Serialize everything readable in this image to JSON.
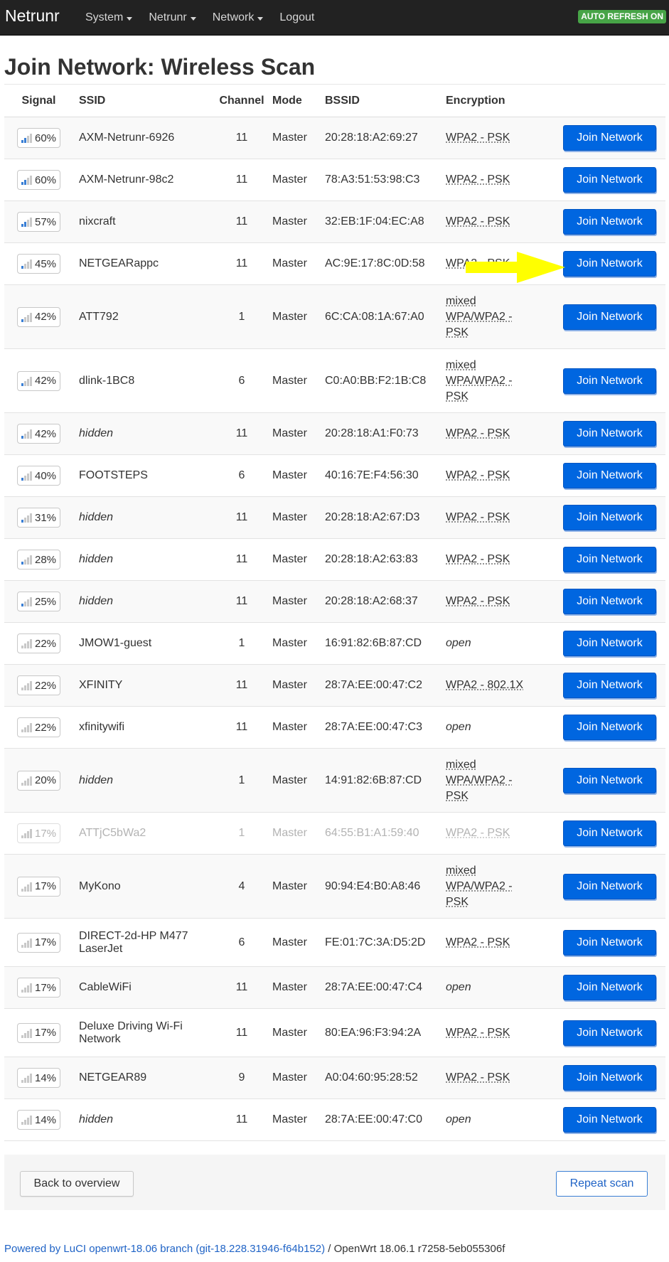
{
  "navbar": {
    "brand": "Netrunr",
    "menu": [
      {
        "label": "System",
        "dropdown": true
      },
      {
        "label": "Netrunr",
        "dropdown": true
      },
      {
        "label": "Network",
        "dropdown": true
      },
      {
        "label": "Logout",
        "dropdown": false
      }
    ],
    "auto_refresh_badge": "AUTO REFRESH ON"
  },
  "page_title": "Join Network: Wireless Scan",
  "table": {
    "headers": [
      "Signal",
      "SSID",
      "Channel",
      "Mode",
      "BSSID",
      "Encryption"
    ],
    "join_label": "Join Network",
    "rows": [
      {
        "signal": "60%",
        "bars": 2,
        "ssid": "AXM-Netrunr-6926",
        "hidden": false,
        "channel": "11",
        "mode": "Master",
        "bssid": "20:28:18:A2:69:27",
        "encryption": "WPA2 - PSK",
        "enc_type": "abbr",
        "dim": false
      },
      {
        "signal": "60%",
        "bars": 2,
        "ssid": "AXM-Netrunr-98c2",
        "hidden": false,
        "channel": "11",
        "mode": "Master",
        "bssid": "78:A3:51:53:98:C3",
        "encryption": "WPA2 - PSK",
        "enc_type": "abbr",
        "dim": false
      },
      {
        "signal": "57%",
        "bars": 2,
        "ssid": "nixcraft",
        "hidden": false,
        "channel": "11",
        "mode": "Master",
        "bssid": "32:EB:1F:04:EC:A8",
        "encryption": "WPA2 - PSK",
        "enc_type": "abbr",
        "dim": false
      },
      {
        "signal": "45%",
        "bars": 1,
        "ssid": "NETGEARappc",
        "hidden": false,
        "channel": "11",
        "mode": "Master",
        "bssid": "AC:9E:17:8C:0D:58",
        "encryption": "WPA2 - PSK",
        "enc_type": "abbr",
        "dim": false
      },
      {
        "signal": "42%",
        "bars": 1,
        "ssid": "ATT792",
        "hidden": false,
        "channel": "1",
        "mode": "Master",
        "bssid": "6C:CA:08:1A:67:A0",
        "encryption": "mixed WPA/WPA2 - PSK",
        "enc_type": "mixed",
        "dim": false
      },
      {
        "signal": "42%",
        "bars": 1,
        "ssid": "dlink-1BC8",
        "hidden": false,
        "channel": "6",
        "mode": "Master",
        "bssid": "C0:A0:BB:F2:1B:C8",
        "encryption": "mixed WPA/WPA2 - PSK",
        "enc_type": "mixed",
        "dim": false
      },
      {
        "signal": "42%",
        "bars": 1,
        "ssid": "hidden",
        "hidden": true,
        "channel": "11",
        "mode": "Master",
        "bssid": "20:28:18:A1:F0:73",
        "encryption": "WPA2 - PSK",
        "enc_type": "abbr",
        "dim": false
      },
      {
        "signal": "40%",
        "bars": 1,
        "ssid": "FOOTSTEPS",
        "hidden": false,
        "channel": "6",
        "mode": "Master",
        "bssid": "40:16:7E:F4:56:30",
        "encryption": "WPA2 - PSK",
        "enc_type": "abbr",
        "dim": false
      },
      {
        "signal": "31%",
        "bars": 1,
        "ssid": "hidden",
        "hidden": true,
        "channel": "11",
        "mode": "Master",
        "bssid": "20:28:18:A2:67:D3",
        "encryption": "WPA2 - PSK",
        "enc_type": "abbr",
        "dim": false
      },
      {
        "signal": "28%",
        "bars": 1,
        "ssid": "hidden",
        "hidden": true,
        "channel": "11",
        "mode": "Master",
        "bssid": "20:28:18:A2:63:83",
        "encryption": "WPA2 - PSK",
        "enc_type": "abbr",
        "dim": false
      },
      {
        "signal": "25%",
        "bars": 1,
        "ssid": "hidden",
        "hidden": true,
        "channel": "11",
        "mode": "Master",
        "bssid": "20:28:18:A2:68:37",
        "encryption": "WPA2 - PSK",
        "enc_type": "abbr",
        "dim": false
      },
      {
        "signal": "22%",
        "bars": 0,
        "ssid": "JMOW1-guest",
        "hidden": false,
        "channel": "1",
        "mode": "Master",
        "bssid": "16:91:82:6B:87:CD",
        "encryption": "open",
        "enc_type": "open",
        "dim": false
      },
      {
        "signal": "22%",
        "bars": 0,
        "ssid": "XFINITY",
        "hidden": false,
        "channel": "11",
        "mode": "Master",
        "bssid": "28:7A:EE:00:47:C2",
        "encryption": "WPA2 - 802.1X",
        "enc_type": "abbr",
        "dim": false
      },
      {
        "signal": "22%",
        "bars": 0,
        "ssid": "xfinitywifi",
        "hidden": false,
        "channel": "11",
        "mode": "Master",
        "bssid": "28:7A:EE:00:47:C3",
        "encryption": "open",
        "enc_type": "open",
        "dim": false
      },
      {
        "signal": "20%",
        "bars": 0,
        "ssid": "hidden",
        "hidden": true,
        "channel": "1",
        "mode": "Master",
        "bssid": "14:91:82:6B:87:CD",
        "encryption": "mixed WPA/WPA2 - PSK",
        "enc_type": "mixed",
        "dim": false
      },
      {
        "signal": "17%",
        "bars": 0,
        "ssid": "ATTjC5bWa2",
        "hidden": false,
        "channel": "1",
        "mode": "Master",
        "bssid": "64:55:B1:A1:59:40",
        "encryption": "WPA2 - PSK",
        "enc_type": "abbr",
        "dim": true
      },
      {
        "signal": "17%",
        "bars": 0,
        "ssid": "MyKono",
        "hidden": false,
        "channel": "4",
        "mode": "Master",
        "bssid": "90:94:E4:B0:A8:46",
        "encryption": "mixed WPA/WPA2 - PSK",
        "enc_type": "mixed",
        "dim": false
      },
      {
        "signal": "17%",
        "bars": 0,
        "ssid": "DIRECT-2d-HP M477 LaserJet",
        "hidden": false,
        "channel": "6",
        "mode": "Master",
        "bssid": "FE:01:7C:3A:D5:2D",
        "encryption": "WPA2 - PSK",
        "enc_type": "abbr",
        "dim": false
      },
      {
        "signal": "17%",
        "bars": 0,
        "ssid": "CableWiFi",
        "hidden": false,
        "channel": "11",
        "mode": "Master",
        "bssid": "28:7A:EE:00:47:C4",
        "encryption": "open",
        "enc_type": "open",
        "dim": false
      },
      {
        "signal": "17%",
        "bars": 0,
        "ssid": "Deluxe Driving Wi-Fi Network",
        "hidden": false,
        "channel": "11",
        "mode": "Master",
        "bssid": "80:EA:96:F3:94:2A",
        "encryption": "WPA2 - PSK",
        "enc_type": "abbr",
        "dim": false
      },
      {
        "signal": "14%",
        "bars": 0,
        "ssid": "NETGEAR89",
        "hidden": false,
        "channel": "9",
        "mode": "Master",
        "bssid": "A0:04:60:95:28:52",
        "encryption": "WPA2 - PSK",
        "enc_type": "abbr",
        "dim": false
      },
      {
        "signal": "14%",
        "bars": 0,
        "ssid": "hidden",
        "hidden": true,
        "channel": "11",
        "mode": "Master",
        "bssid": "28:7A:EE:00:47:C0",
        "encryption": "open",
        "enc_type": "open",
        "dim": false
      }
    ]
  },
  "actions": {
    "back_label": "Back to overview",
    "repeat_label": "Repeat scan"
  },
  "footer": {
    "link_text": "Powered by LuCI openwrt-18.06 branch (git-18.228.31946-f64b152)",
    "version_text": " / OpenWrt 18.06.1 r7258-5eb055306f"
  },
  "colors": {
    "navbar_bg": "#222222",
    "badge_green": "#47a447",
    "join_button_blue": "#0066e0",
    "link_blue": "#1f63c6",
    "annotation_arrow": "#ffff00"
  }
}
